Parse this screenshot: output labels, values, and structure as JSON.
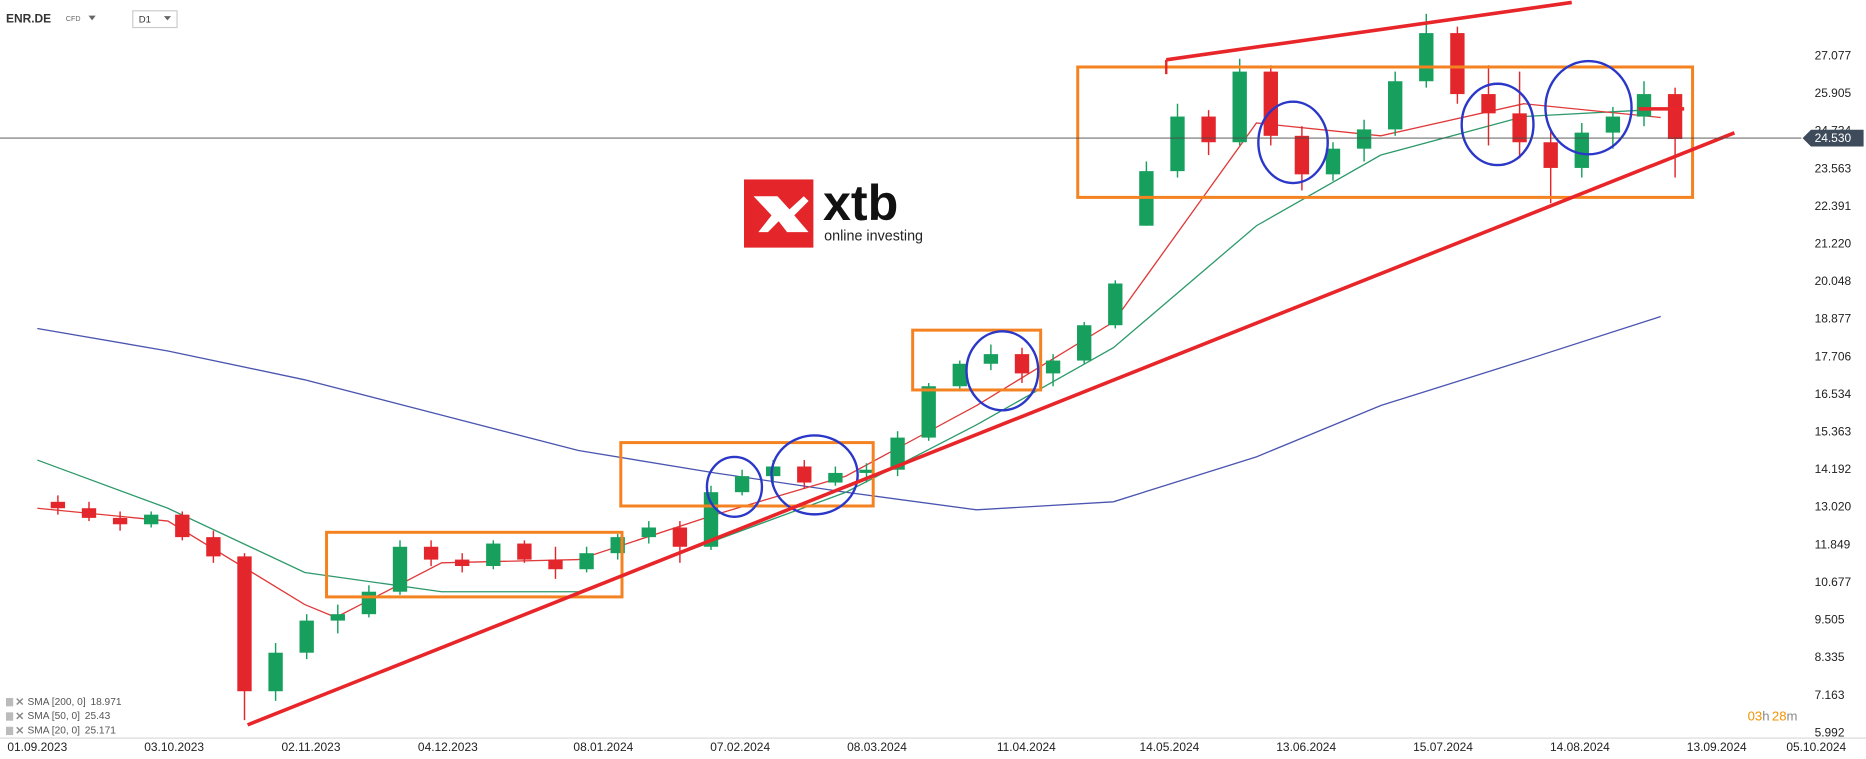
{
  "chart_data": {
    "type": "candlestick",
    "symbol": "ENR.DE",
    "instrument_type": "CFD",
    "timeframe": "D1",
    "logo": {
      "name": "xtb",
      "tagline": "online investing"
    },
    "x": [
      "2023-09-04",
      "2023-09-11",
      "2023-09-18",
      "2023-09-25",
      "2023-10-02",
      "2023-10-09",
      "2023-10-16",
      "2023-10-23",
      "2023-10-30",
      "2023-11-06",
      "2023-11-13",
      "2023-11-20",
      "2023-11-27",
      "2023-12-04",
      "2023-12-11",
      "2023-12-18",
      "2023-12-25",
      "2024-01-01",
      "2024-01-08",
      "2024-01-15",
      "2024-01-22",
      "2024-01-29",
      "2024-02-05",
      "2024-02-12",
      "2024-02-19",
      "2024-02-26",
      "2024-03-04",
      "2024-03-11",
      "2024-03-18",
      "2024-03-25",
      "2024-04-01",
      "2024-04-08",
      "2024-04-15",
      "2024-04-22",
      "2024-04-29",
      "2024-05-06",
      "2024-05-13",
      "2024-05-20",
      "2024-05-27",
      "2024-06-03",
      "2024-06-10",
      "2024-06-17",
      "2024-06-24",
      "2024-07-01",
      "2024-07-08",
      "2024-07-15",
      "2024-07-22",
      "2024-07-29",
      "2024-08-05",
      "2024-08-12",
      "2024-08-19",
      "2024-08-26",
      "2024-09-02"
    ],
    "open": [
      13.2,
      13.0,
      12.7,
      12.5,
      12.8,
      12.1,
      11.5,
      7.3,
      8.5,
      9.5,
      9.7,
      10.4,
      11.8,
      11.4,
      11.2,
      11.9,
      11.4,
      11.1,
      11.6,
      12.1,
      12.4,
      11.8,
      13.5,
      14.0,
      14.3,
      13.8,
      14.1,
      14.2,
      15.2,
      16.8,
      17.5,
      17.8,
      17.2,
      17.6,
      18.7,
      21.8,
      23.5,
      25.2,
      24.4,
      26.6,
      24.6,
      23.4,
      24.2,
      24.8,
      26.3,
      27.8,
      25.9,
      25.3,
      24.4,
      23.6,
      24.7,
      25.2,
      25.9
    ],
    "high": [
      13.4,
      13.2,
      12.9,
      12.9,
      12.9,
      12.3,
      11.6,
      8.8,
      9.7,
      10.0,
      10.6,
      12.0,
      12.0,
      11.6,
      12.0,
      12.0,
      11.8,
      11.8,
      12.2,
      12.6,
      12.6,
      13.7,
      14.2,
      14.5,
      14.5,
      14.3,
      14.4,
      15.4,
      16.9,
      17.6,
      18.1,
      18.0,
      17.8,
      18.8,
      20.1,
      23.8,
      25.6,
      25.4,
      27.0,
      26.8,
      24.9,
      24.4,
      25.1,
      26.6,
      28.4,
      28.0,
      26.8,
      26.6,
      24.8,
      25.0,
      25.5,
      26.3,
      26.1
    ],
    "low": [
      12.8,
      12.6,
      12.3,
      12.4,
      12.0,
      11.3,
      6.4,
      7.0,
      8.3,
      9.1,
      9.6,
      10.3,
      11.2,
      11.0,
      11.1,
      11.3,
      10.8,
      11.0,
      11.4,
      11.9,
      11.3,
      11.7,
      13.4,
      13.7,
      13.6,
      13.7,
      13.8,
      14.0,
      15.1,
      16.7,
      17.3,
      16.9,
      16.8,
      17.5,
      18.6,
      21.8,
      23.3,
      24.0,
      24.3,
      24.3,
      22.9,
      23.2,
      23.8,
      24.6,
      26.1,
      25.6,
      24.3,
      23.9,
      22.5,
      23.3,
      24.2,
      24.9,
      23.3
    ],
    "close": [
      13.0,
      12.7,
      12.5,
      12.8,
      12.1,
      11.5,
      7.3,
      8.5,
      9.5,
      9.7,
      10.4,
      11.8,
      11.4,
      11.2,
      11.9,
      11.4,
      11.1,
      11.6,
      12.1,
      12.4,
      11.8,
      13.5,
      14.0,
      14.3,
      13.8,
      14.1,
      14.2,
      15.2,
      16.8,
      17.5,
      17.8,
      17.2,
      17.6,
      18.7,
      20.0,
      23.5,
      25.2,
      24.4,
      26.6,
      24.6,
      23.4,
      24.2,
      24.8,
      26.3,
      27.8,
      25.9,
      25.3,
      24.4,
      23.6,
      24.7,
      25.2,
      25.9,
      24.5
    ],
    "up_color": "#17a05d",
    "down_color": "#e3262b",
    "indicators": [
      {
        "name": "SMA [200, 0]",
        "last": 18.971,
        "color": "#4a55b0",
        "x": [
          "2023-09-01",
          "2023-10-02",
          "2023-11-01",
          "2023-12-01",
          "2024-01-02",
          "2024-02-01",
          "2024-03-01",
          "2024-04-01",
          "2024-05-01",
          "2024-06-03",
          "2024-07-01",
          "2024-08-01",
          "2024-09-02"
        ],
        "values": [
          18.6,
          17.9,
          17.0,
          15.9,
          14.8,
          14.1,
          13.5,
          12.95,
          13.2,
          14.6,
          16.2,
          17.6,
          18.97
        ]
      },
      {
        "name": "SMA [50, 0]",
        "last": 25.43,
        "color": "#2e9a6b",
        "x": [
          "2023-09-01",
          "2023-10-02",
          "2023-11-01",
          "2023-12-01",
          "2024-01-02",
          "2024-02-01",
          "2024-03-01",
          "2024-04-01",
          "2024-05-01",
          "2024-06-03",
          "2024-07-01",
          "2024-08-01",
          "2024-09-02"
        ],
        "values": [
          14.5,
          13.0,
          11.0,
          10.4,
          10.4,
          12.0,
          13.5,
          15.6,
          18.0,
          21.8,
          24.0,
          25.2,
          25.43
        ]
      },
      {
        "name": "SMA [20, 0]",
        "last": 25.171,
        "color": "#e03a3a",
        "x": [
          "2023-09-01",
          "2023-10-02",
          "2023-11-01",
          "2023-11-08",
          "2023-12-01",
          "2024-01-02",
          "2024-02-01",
          "2024-03-01",
          "2024-04-01",
          "2024-05-01",
          "2024-06-03",
          "2024-07-01",
          "2024-08-01",
          "2024-09-02"
        ],
        "values": [
          13.0,
          12.6,
          10.0,
          9.6,
          11.3,
          11.4,
          12.8,
          14.0,
          16.2,
          18.8,
          25.0,
          24.6,
          25.6,
          25.17
        ]
      }
    ],
    "current_price": {
      "value": 24.53,
      "label": "24.530"
    },
    "ylim": [
      5.73,
      28.83
    ],
    "yticks": [
      5.992,
      7.163,
      8.335,
      9.505,
      10.677,
      11.849,
      {
        "value": 13.02,
        "label": "13.020"
      },
      14.192,
      15.363,
      16.534,
      17.706,
      18.877,
      20.048,
      {
        "value": 21.22,
        "label": "21.220"
      },
      22.391,
      23.563,
      24.734,
      25.905,
      27.077
    ],
    "xlim": [
      "2023-08-24",
      "2024-10-17"
    ],
    "xticks": [
      {
        "value": "2023-09-01",
        "label": "01.09.2023"
      },
      {
        "value": "2023-10-03",
        "label": "03.10.2023"
      },
      {
        "value": "2023-11-02",
        "label": "02.11.2023"
      },
      {
        "value": "2023-12-04",
        "label": "04.12.2023"
      },
      {
        "value": "2024-01-08",
        "label": "08.01.2024"
      },
      {
        "value": "2024-02-07",
        "label": "07.02.2024"
      },
      {
        "value": "2024-03-08",
        "label": "08.03.2024"
      },
      {
        "value": "2024-04-11",
        "label": "11.04.2024"
      },
      {
        "value": "2024-05-14",
        "label": "14.05.2024"
      },
      {
        "value": "2024-06-13",
        "label": "13.06.2024"
      },
      {
        "value": "2024-07-15",
        "label": "15.07.2024"
      },
      {
        "value": "2024-08-14",
        "label": "14.08.2024"
      },
      {
        "value": "2024-09-13",
        "label": "13.09.2024"
      },
      {
        "value": "2024-10-05",
        "label": "05.10.2024"
      }
    ],
    "grid": false,
    "countdown": [
      "03",
      "h",
      "28",
      "m"
    ]
  }
}
